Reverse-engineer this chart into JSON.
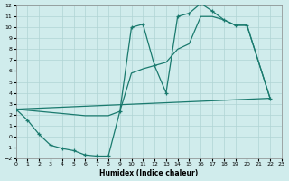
{
  "xlabel": "Humidex (Indice chaleur)",
  "bg_color": "#d0ecec",
  "grid_color": "#b0d4d4",
  "line_color": "#1a7a6e",
  "xlim": [
    0,
    23
  ],
  "ylim": [
    -2,
    12
  ],
  "xticks": [
    0,
    1,
    2,
    3,
    4,
    5,
    6,
    7,
    8,
    9,
    10,
    11,
    12,
    13,
    14,
    15,
    16,
    17,
    18,
    19,
    20,
    21,
    22,
    23
  ],
  "yticks": [
    -2,
    -1,
    0,
    1,
    2,
    3,
    4,
    5,
    6,
    7,
    8,
    9,
    10,
    11,
    12
  ],
  "curve1_x": [
    0,
    1,
    2,
    3,
    4,
    5,
    6,
    7,
    8,
    9,
    10,
    11,
    12,
    13,
    14,
    15,
    16,
    17,
    18,
    19,
    20,
    22
  ],
  "curve1_y": [
    2.5,
    1.5,
    0.2,
    -0.8,
    -1.1,
    -1.3,
    -1.7,
    -1.8,
    -1.8,
    2.3,
    10.0,
    10.3,
    6.5,
    4.0,
    11.0,
    11.3,
    12.2,
    11.5,
    10.7,
    10.2,
    10.2,
    3.5
  ],
  "curve2_x": [
    0,
    1,
    2,
    3,
    4,
    5,
    6,
    7,
    8,
    9,
    10,
    11,
    12,
    13,
    14,
    15,
    16,
    17,
    18,
    19,
    20,
    22
  ],
  "curve2_y": [
    2.5,
    2.4,
    2.3,
    2.2,
    2.1,
    2.0,
    1.9,
    1.9,
    1.9,
    2.3,
    5.8,
    6.2,
    6.5,
    6.8,
    8.0,
    8.5,
    11.0,
    11.0,
    10.7,
    10.2,
    10.2,
    3.5
  ],
  "curve3_x": [
    0,
    22
  ],
  "curve3_y": [
    2.5,
    3.5
  ]
}
